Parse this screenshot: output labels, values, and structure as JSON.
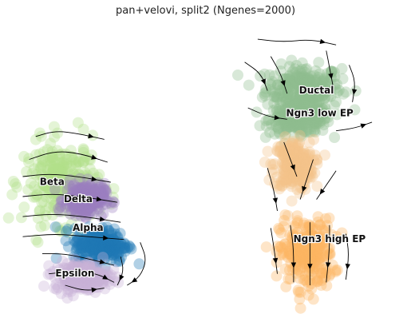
{
  "chart_data": {
    "type": "scatter",
    "subtype": "umap-velocity-stream",
    "title": "pan+velovi, split2 (Ngenes=2000)",
    "xlabel": "",
    "ylabel": "",
    "axes_visible": false,
    "grid": false,
    "legend": "on data",
    "clusters": [
      {
        "name": "Ductal",
        "label": "Ductal",
        "color": "#8fbc8f",
        "center": [
          8.6,
          8.1
        ],
        "spread": [
          1.05,
          0.7
        ]
      },
      {
        "name": "Ngn3 low EP",
        "label": "Ngn3 low EP",
        "color": "#8fbc8f",
        "center": [
          8.5,
          7.0
        ],
        "spread": [
          0.85,
          0.45
        ]
      },
      {
        "name": "Ngn3 low EP transition",
        "label": "",
        "color": "#f4c48a",
        "center": [
          8.3,
          5.4
        ],
        "spread": [
          0.55,
          0.8
        ]
      },
      {
        "name": "Ngn3 high EP",
        "label": "Ngn3 high EP",
        "color": "#fdb462",
        "center": [
          8.7,
          2.3
        ],
        "spread": [
          0.75,
          1.1
        ]
      },
      {
        "name": "Beta",
        "label": "Beta",
        "color": "#b2df8a",
        "center": [
          1.2,
          4.8
        ],
        "spread": [
          1.05,
          1.3
        ]
      },
      {
        "name": "Delta",
        "label": "Delta",
        "color": "#9b7fc0",
        "center": [
          1.9,
          4.2
        ],
        "spread": [
          0.55,
          0.5
        ]
      },
      {
        "name": "Alpha",
        "label": "Alpha",
        "color": "#1f77b4",
        "center": [
          2.4,
          2.6
        ],
        "spread": [
          0.75,
          0.55
        ]
      },
      {
        "name": "Epsilon",
        "label": "Epsilon",
        "color": "#c9b2d6",
        "center": [
          1.8,
          1.5
        ],
        "spread": [
          0.75,
          0.45
        ]
      }
    ],
    "labels": [
      {
        "text": "Ductal",
        "x": 9.0,
        "y": 8.0
      },
      {
        "text": "Ngn3 low EP",
        "x": 9.1,
        "y": 7.2
      },
      {
        "text": "Beta",
        "x": 0.9,
        "y": 4.8
      },
      {
        "text": "Delta",
        "x": 1.7,
        "y": 4.2
      },
      {
        "text": "Alpha",
        "x": 2.0,
        "y": 3.2
      },
      {
        "text": "Epsilon",
        "x": 1.6,
        "y": 1.6
      },
      {
        "text": "Ngn3 high EP",
        "x": 9.4,
        "y": 2.8
      }
    ],
    "streamlines": [
      {
        "points": [
          [
            7.2,
            9.8
          ],
          [
            8.0,
            9.7
          ],
          [
            8.8,
            9.8
          ],
          [
            9.6,
            9.6
          ]
        ]
      },
      {
        "points": [
          [
            6.8,
            9.0
          ],
          [
            7.3,
            8.6
          ],
          [
            7.5,
            8.0
          ]
        ]
      },
      {
        "points": [
          [
            7.6,
            9.2
          ],
          [
            7.9,
            8.6
          ],
          [
            8.1,
            7.9
          ]
        ]
      },
      {
        "points": [
          [
            9.3,
            9.4
          ],
          [
            9.4,
            8.8
          ],
          [
            9.5,
            8.2
          ]
        ]
      },
      {
        "points": [
          [
            10.0,
            8.9
          ],
          [
            10.2,
            8.3
          ],
          [
            10.1,
            7.6
          ]
        ]
      },
      {
        "points": [
          [
            6.9,
            7.4
          ],
          [
            7.5,
            7.1
          ],
          [
            8.1,
            7.0
          ]
        ]
      },
      {
        "points": [
          [
            9.6,
            6.6
          ],
          [
            10.2,
            6.7
          ],
          [
            10.7,
            6.9
          ]
        ]
      },
      {
        "points": [
          [
            8.0,
            6.2
          ],
          [
            8.2,
            5.6
          ],
          [
            8.4,
            5.0
          ]
        ]
      },
      {
        "points": [
          [
            7.5,
            5.3
          ],
          [
            7.7,
            4.5
          ],
          [
            7.8,
            3.8
          ]
        ]
      },
      {
        "points": [
          [
            8.9,
            5.6
          ],
          [
            8.7,
            4.9
          ],
          [
            8.5,
            4.2
          ]
        ]
      },
      {
        "points": [
          [
            9.6,
            5.2
          ],
          [
            9.3,
            4.7
          ],
          [
            9.0,
            4.2
          ]
        ]
      },
      {
        "points": [
          [
            7.6,
            3.2
          ],
          [
            7.7,
            2.5
          ],
          [
            7.8,
            1.6
          ]
        ]
      },
      {
        "points": [
          [
            8.2,
            3.3
          ],
          [
            8.3,
            2.5
          ],
          [
            8.3,
            1.3
          ]
        ]
      },
      {
        "points": [
          [
            8.8,
            3.4
          ],
          [
            8.8,
            2.5
          ],
          [
            8.8,
            1.2
          ]
        ]
      },
      {
        "points": [
          [
            9.4,
            3.3
          ],
          [
            9.4,
            2.5
          ],
          [
            9.3,
            1.3
          ]
        ]
      },
      {
        "points": [
          [
            9.9,
            3.0
          ],
          [
            10.0,
            2.3
          ],
          [
            9.9,
            1.4
          ]
        ]
      },
      {
        "points": [
          [
            0.4,
            6.4
          ],
          [
            1.0,
            6.6
          ],
          [
            1.7,
            6.5
          ],
          [
            2.5,
            6.3
          ]
        ]
      },
      {
        "points": [
          [
            0.2,
            5.6
          ],
          [
            1.0,
            5.9
          ],
          [
            1.8,
            5.8
          ],
          [
            2.6,
            5.5
          ]
        ]
      },
      {
        "points": [
          [
            0.0,
            5.0
          ],
          [
            0.8,
            5.1
          ],
          [
            1.7,
            5.0
          ],
          [
            2.7,
            4.8
          ]
        ]
      },
      {
        "points": [
          [
            0.0,
            4.3
          ],
          [
            0.9,
            4.4
          ],
          [
            1.8,
            4.3
          ],
          [
            2.9,
            4.1
          ]
        ]
      },
      {
        "points": [
          [
            0.0,
            3.6
          ],
          [
            0.9,
            3.7
          ],
          [
            1.9,
            3.6
          ],
          [
            3.0,
            3.4
          ]
        ]
      },
      {
        "points": [
          [
            0.0,
            2.9
          ],
          [
            1.0,
            3.0
          ],
          [
            2.0,
            2.9
          ],
          [
            3.1,
            2.8
          ]
        ]
      },
      {
        "points": [
          [
            0.6,
            2.3
          ],
          [
            1.3,
            2.3
          ],
          [
            2.1,
            2.1
          ],
          [
            2.8,
            1.9
          ]
        ]
      },
      {
        "points": [
          [
            0.8,
            1.6
          ],
          [
            1.6,
            1.7
          ],
          [
            2.3,
            1.6
          ],
          [
            2.8,
            1.3
          ]
        ]
      },
      {
        "points": [
          [
            3.6,
            2.7
          ],
          [
            3.8,
            2.1
          ],
          [
            3.6,
            1.5
          ],
          [
            3.2,
            1.2
          ]
        ]
      },
      {
        "points": [
          [
            3.0,
            2.2
          ],
          [
            3.1,
            1.7
          ],
          [
            2.9,
            1.2
          ]
        ]
      },
      {
        "points": [
          [
            1.3,
            1.2
          ],
          [
            1.9,
            1.0
          ],
          [
            2.5,
            1.1
          ]
        ]
      }
    ],
    "xlim": [
      -0.5,
      11.7
    ],
    "ylim": [
      0.0,
      10.5
    ]
  }
}
